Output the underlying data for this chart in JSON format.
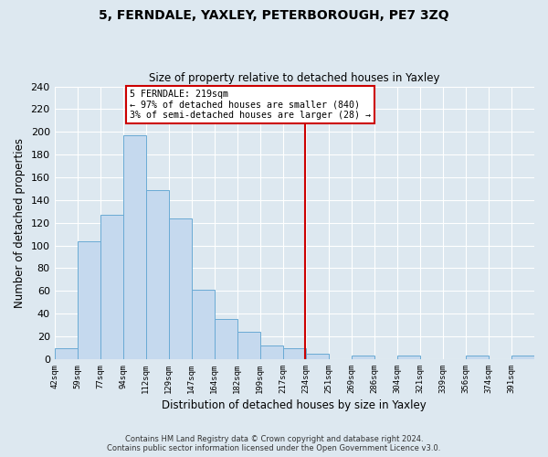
{
  "title": "5, FERNDALE, YAXLEY, PETERBOROUGH, PE7 3ZQ",
  "subtitle": "Size of property relative to detached houses in Yaxley",
  "xlabel": "Distribution of detached houses by size in Yaxley",
  "ylabel": "Number of detached properties",
  "bin_labels": [
    "42sqm",
    "59sqm",
    "77sqm",
    "94sqm",
    "112sqm",
    "129sqm",
    "147sqm",
    "164sqm",
    "182sqm",
    "199sqm",
    "217sqm",
    "234sqm",
    "251sqm",
    "269sqm",
    "286sqm",
    "304sqm",
    "321sqm",
    "339sqm",
    "356sqm",
    "374sqm",
    "391sqm"
  ],
  "bar_heights": [
    10,
    104,
    127,
    197,
    149,
    124,
    61,
    35,
    24,
    12,
    10,
    5,
    0,
    3,
    0,
    3,
    0,
    0,
    3,
    0,
    3
  ],
  "bar_color": "#c5d9ee",
  "bar_edge_color": "#6aaad4",
  "ylim": [
    0,
    240
  ],
  "yticks": [
    0,
    20,
    40,
    60,
    80,
    100,
    120,
    140,
    160,
    180,
    200,
    220,
    240
  ],
  "vline_bin_index": 10,
  "vline_color": "#cc0000",
  "annotation_text": "5 FERNDALE: 219sqm\n← 97% of detached houses are smaller (840)\n3% of semi-detached houses are larger (28) →",
  "annotation_box_color": "#ffffff",
  "annotation_box_edge": "#cc0000",
  "footer_line1": "Contains HM Land Registry data © Crown copyright and database right 2024.",
  "footer_line2": "Contains public sector information licensed under the Open Government Licence v3.0.",
  "background_color": "#dde8f0",
  "plot_bg_color": "#dde8f0",
  "grid_color": "#ffffff"
}
